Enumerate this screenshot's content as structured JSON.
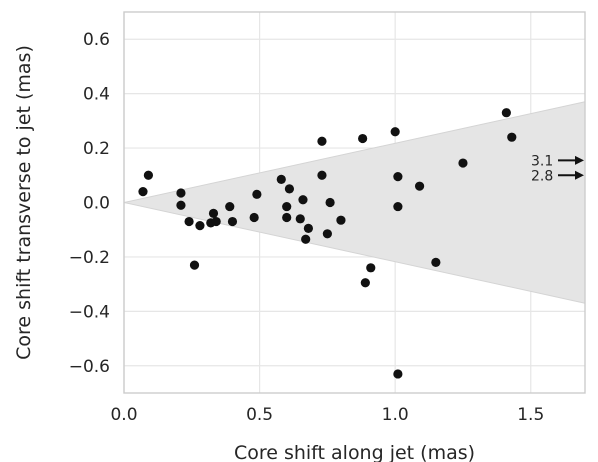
{
  "chart_data": {
    "type": "scatter",
    "xlabel": "Core shift along jet (mas)",
    "ylabel": "Core shift transverse to jet (mas)",
    "xlim": [
      0.0,
      1.7
    ],
    "ylim": [
      -0.7,
      0.7
    ],
    "xticks": [
      0.0,
      0.5,
      1.0,
      1.5
    ],
    "xtick_labels": [
      "0.0",
      "0.5",
      "1.0",
      "1.5"
    ],
    "yticks": [
      -0.6,
      -0.4,
      -0.2,
      0.0,
      0.2,
      0.4,
      0.6
    ],
    "ytick_labels": [
      "−0.6",
      "−0.4",
      "−0.2",
      "0.0",
      "0.2",
      "0.4",
      "0.6"
    ],
    "grid": true,
    "cone": {
      "apex": [
        0.0,
        0.0
      ],
      "end_x": 1.7,
      "upper_end_y": 0.37,
      "lower_end_y": -0.37,
      "color": "#e5e5e5"
    },
    "marker_color": "#111111",
    "points": [
      {
        "x": 0.07,
        "y": 0.04
      },
      {
        "x": 0.09,
        "y": 0.1
      },
      {
        "x": 0.21,
        "y": 0.035
      },
      {
        "x": 0.21,
        "y": -0.01
      },
      {
        "x": 0.24,
        "y": -0.07
      },
      {
        "x": 0.26,
        "y": -0.23
      },
      {
        "x": 0.28,
        "y": -0.085
      },
      {
        "x": 0.32,
        "y": -0.075
      },
      {
        "x": 0.33,
        "y": -0.04
      },
      {
        "x": 0.34,
        "y": -0.07
      },
      {
        "x": 0.39,
        "y": -0.015
      },
      {
        "x": 0.4,
        "y": -0.07
      },
      {
        "x": 0.48,
        "y": -0.055
      },
      {
        "x": 0.49,
        "y": 0.03
      },
      {
        "x": 0.58,
        "y": 0.085
      },
      {
        "x": 0.6,
        "y": -0.015
      },
      {
        "x": 0.6,
        "y": -0.055
      },
      {
        "x": 0.61,
        "y": 0.05
      },
      {
        "x": 0.65,
        "y": -0.06
      },
      {
        "x": 0.66,
        "y": 0.01
      },
      {
        "x": 0.67,
        "y": -0.135
      },
      {
        "x": 0.68,
        "y": -0.095
      },
      {
        "x": 0.73,
        "y": 0.1
      },
      {
        "x": 0.73,
        "y": 0.225
      },
      {
        "x": 0.75,
        "y": -0.115
      },
      {
        "x": 0.76,
        "y": 0.0
      },
      {
        "x": 0.8,
        "y": -0.065
      },
      {
        "x": 0.88,
        "y": 0.235
      },
      {
        "x": 0.89,
        "y": -0.295
      },
      {
        "x": 0.91,
        "y": -0.24
      },
      {
        "x": 1.0,
        "y": 0.26
      },
      {
        "x": 1.01,
        "y": 0.095
      },
      {
        "x": 1.01,
        "y": -0.015
      },
      {
        "x": 1.01,
        "y": -0.63
      },
      {
        "x": 1.09,
        "y": 0.06
      },
      {
        "x": 1.15,
        "y": -0.22
      },
      {
        "x": 1.25,
        "y": 0.145
      },
      {
        "x": 1.41,
        "y": 0.33
      },
      {
        "x": 1.43,
        "y": 0.24
      }
    ],
    "offscale_annotations": [
      {
        "label": "3.1",
        "y": 0.155
      },
      {
        "label": "2.8",
        "y": 0.1
      }
    ]
  }
}
